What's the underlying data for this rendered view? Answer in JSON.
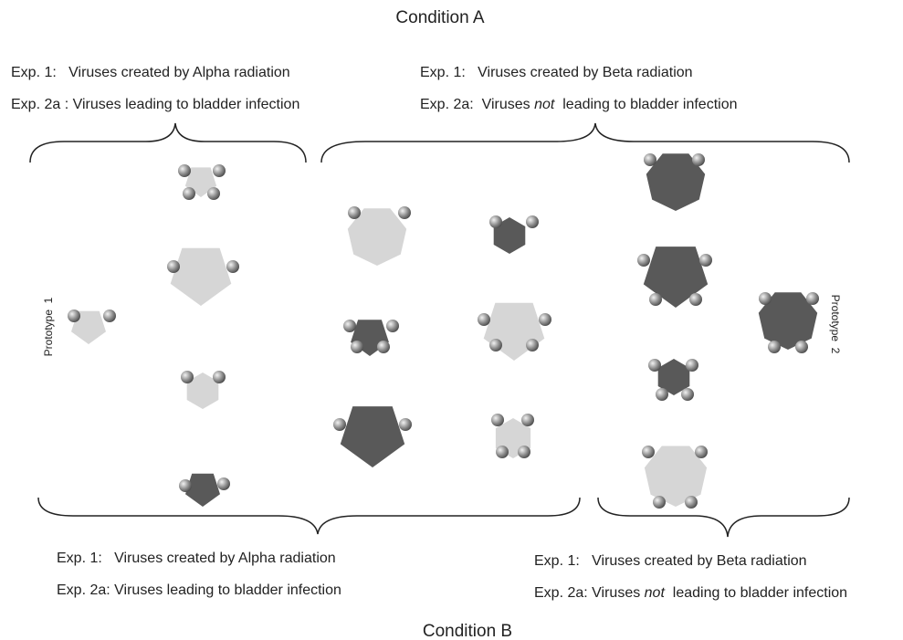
{
  "header": {
    "title": "Condition A"
  },
  "footer": {
    "title": "Condition B"
  },
  "top_left": {
    "line1": "Exp. 1:   Viruses created by Alpha radiation",
    "line2": "Exp. 2a : Viruses leading to bladder infection"
  },
  "top_right": {
    "line1": "Exp. 1:   Viruses created by Beta radiation",
    "line2": {
      "before": "Exp. 2a:  Viruses ",
      "emphasis": "not",
      "after": "  leading to bladder infection"
    }
  },
  "bottom_left": {
    "line1": "Exp. 1:   Viruses created by Alpha radiation",
    "line2": "Exp. 2a: Viruses leading to bladder infection"
  },
  "bottom_right": {
    "line1": "Exp. 1:   Viruses created by Beta radiation",
    "line2": {
      "before": "Exp. 2a: Viruses ",
      "emphasis": "not",
      "after": "  leading to bladder infection"
    }
  },
  "prototypes": [
    "Prototype  1",
    "Prototype  2"
  ]
}
